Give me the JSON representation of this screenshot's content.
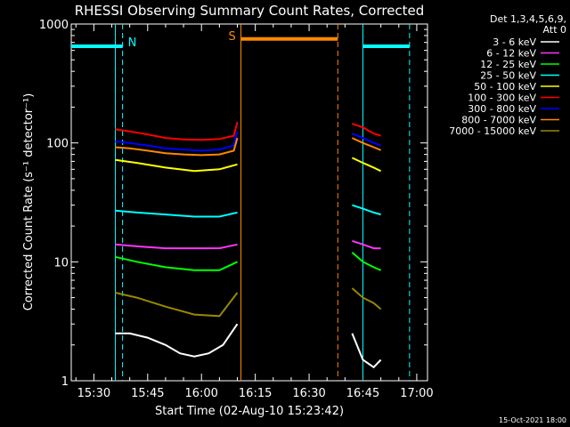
{
  "chart_data": {
    "type": "line",
    "title": "RHESSI Observing Summary Count Rates, Corrected",
    "xlabel": "Start Time (02-Aug-10 15:23:42)",
    "ylabel": "Corrected Count Rate (s⁻¹ detector⁻¹)",
    "xscale": "time",
    "yscale": "log",
    "xlim": [
      "15:23:42",
      "17:03:00"
    ],
    "ylim": [
      1,
      1000
    ],
    "x_ticks": [
      "15:30",
      "15:45",
      "16:00",
      "16:15",
      "16:30",
      "16:45",
      "17:00"
    ],
    "y_ticks": [
      "1",
      "10",
      "100",
      "1000"
    ],
    "legend_header": [
      "Det 1,3,4,5,6,9,",
      "Att 0"
    ],
    "legend_position": "right",
    "grid": false,
    "timestamp": "15-Oct-2021 18:00",
    "series": [
      {
        "name": "3 - 6 keV",
        "color": "#ffffff",
        "segments": [
          {
            "x": [
              "15:36",
              "15:40",
              "15:45",
              "15:50",
              "15:54",
              "15:58",
              "16:02",
              "16:06",
              "16:10"
            ],
            "y": [
              2.5,
              2.5,
              2.3,
              2.0,
              1.7,
              1.6,
              1.7,
              2.0,
              3.0
            ]
          },
          {
            "x": [
              "16:42",
              "16:45",
              "16:48",
              "16:50"
            ],
            "y": [
              2.5,
              1.5,
              1.3,
              1.5
            ]
          }
        ]
      },
      {
        "name": "6 - 12 keV",
        "color": "#ff33ff",
        "segments": [
          {
            "x": [
              "15:36",
              "15:42",
              "15:50",
              "15:58",
              "16:05",
              "16:10"
            ],
            "y": [
              14,
              13.5,
              13,
              13,
              13,
              14
            ]
          },
          {
            "x": [
              "16:42",
              "16:45",
              "16:48",
              "16:50"
            ],
            "y": [
              15,
              14,
              13,
              13
            ]
          }
        ]
      },
      {
        "name": "12 - 25 keV",
        "color": "#00ff00",
        "segments": [
          {
            "x": [
              "15:36",
              "15:42",
              "15:50",
              "15:58",
              "16:05",
              "16:10"
            ],
            "y": [
              11,
              10,
              9,
              8.5,
              8.5,
              10
            ]
          },
          {
            "x": [
              "16:42",
              "16:45",
              "16:48",
              "16:50"
            ],
            "y": [
              12,
              10,
              9,
              8.5
            ]
          }
        ]
      },
      {
        "name": "25 - 50 keV",
        "color": "#00ffff",
        "segments": [
          {
            "x": [
              "15:36",
              "15:42",
              "15:50",
              "15:58",
              "16:05",
              "16:10"
            ],
            "y": [
              27,
              26,
              25,
              24,
              24,
              26
            ]
          },
          {
            "x": [
              "16:42",
              "16:45",
              "16:48",
              "16:50"
            ],
            "y": [
              30,
              28,
              26,
              25
            ]
          }
        ]
      },
      {
        "name": "50 - 100 keV",
        "color": "#ffff00",
        "segments": [
          {
            "x": [
              "15:36",
              "15:42",
              "15:50",
              "15:58",
              "16:05",
              "16:10"
            ],
            "y": [
              72,
              68,
              62,
              58,
              60,
              66
            ]
          },
          {
            "x": [
              "16:42",
              "16:45",
              "16:48",
              "16:50"
            ],
            "y": [
              75,
              68,
              62,
              58
            ]
          }
        ]
      },
      {
        "name": "100 - 300 keV",
        "color": "#ff0000",
        "segments": [
          {
            "x": [
              "15:36",
              "15:40",
              "15:45",
              "15:50",
              "15:55",
              "16:00",
              "16:05",
              "16:09",
              "16:10"
            ],
            "y": [
              130,
              125,
              118,
              110,
              107,
              106,
              108,
              115,
              150
            ]
          },
          {
            "x": [
              "16:42",
              "16:45",
              "16:48",
              "16:50"
            ],
            "y": [
              145,
              135,
              120,
              115
            ]
          }
        ]
      },
      {
        "name": "300 - 800 keV",
        "color": "#0000ff",
        "segments": [
          {
            "x": [
              "15:36",
              "15:40",
              "15:45",
              "15:50",
              "15:55",
              "16:00",
              "16:05",
              "16:09",
              "16:10"
            ],
            "y": [
              103,
              100,
              95,
              90,
              88,
              86,
              88,
              95,
              125
            ]
          },
          {
            "x": [
              "16:42",
              "16:45",
              "16:48",
              "16:50"
            ],
            "y": [
              120,
              110,
              100,
              95
            ]
          }
        ]
      },
      {
        "name": "800 - 7000 keV",
        "color": "#ff8800",
        "segments": [
          {
            "x": [
              "15:36",
              "15:40",
              "15:45",
              "15:50",
              "15:55",
              "16:00",
              "16:05",
              "16:09",
              "16:10"
            ],
            "y": [
              92,
              90,
              86,
              82,
              80,
              79,
              80,
              86,
              110
            ]
          },
          {
            "x": [
              "16:42",
              "16:45",
              "16:48",
              "16:50"
            ],
            "y": [
              110,
              100,
              92,
              87
            ]
          }
        ]
      },
      {
        "name": "7000 - 15000 keV",
        "color": "#998800",
        "segments": [
          {
            "x": [
              "15:36",
              "15:42",
              "15:50",
              "15:58",
              "16:05",
              "16:10"
            ],
            "y": [
              5.5,
              5,
              4.2,
              3.6,
              3.5,
              5.5
            ]
          },
          {
            "x": [
              "16:42",
              "16:45",
              "16:48",
              "16:50"
            ],
            "y": [
              6,
              5,
              4.5,
              4
            ]
          }
        ]
      }
    ],
    "annotations": {
      "night": {
        "label": "N",
        "color": "#00ffff",
        "bars": [
          {
            "x": [
              "15:23:42",
              "15:38"
            ],
            "y": 650
          },
          {
            "x": [
              "16:45",
              "16:58"
            ],
            "y": 650
          }
        ],
        "solid_lines": [
          "15:36",
          "16:45"
        ],
        "dashed_lines": [
          "15:38",
          "16:58"
        ]
      },
      "saa": {
        "label": "S",
        "color": "#ff8800",
        "bars": [
          {
            "x": [
              "16:11",
              "16:38"
            ],
            "y": 750
          }
        ],
        "solid_lines": [
          "16:11"
        ],
        "dashed_lines": [
          "16:38"
        ]
      }
    }
  }
}
